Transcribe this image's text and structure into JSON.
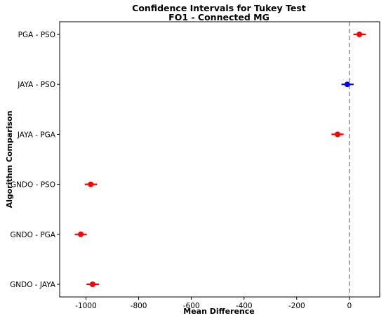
{
  "chart_data": {
    "type": "errorbar",
    "title": "Confidence Intervals for Tukey Test",
    "subtitle": "FO1 - Connected MG",
    "xlabel": "Mean Difference",
    "ylabel": "Algorithm Comparison",
    "xlim": [
      -1100,
      115
    ],
    "xticks": [
      -1000,
      -800,
      -600,
      -400,
      -200,
      0
    ],
    "xtick_labels": [
      "-1000",
      "-800",
      "-600",
      "-400",
      "-200",
      "0"
    ],
    "reference_line": 0,
    "grid": false,
    "comparisons": [
      {
        "label": "PGA - PSO",
        "mean": 38,
        "lower": 15,
        "upper": 62,
        "color": "#ff0000"
      },
      {
        "label": "JAYA - PSO",
        "mean": -8,
        "lower": -30,
        "upper": 16,
        "color": "#0000ff"
      },
      {
        "label": "JAYA - PGA",
        "mean": -45,
        "lower": -68,
        "upper": -22,
        "color": "#ff0000"
      },
      {
        "label": "GNDO - PSO",
        "mean": -982,
        "lower": -1005,
        "upper": -958,
        "color": "#ff0000"
      },
      {
        "label": "GNDO - PGA",
        "mean": -1020,
        "lower": -1043,
        "upper": -997,
        "color": "#ff0000"
      },
      {
        "label": "GNDO - JAYA",
        "mean": -975,
        "lower": -998,
        "upper": -951,
        "color": "#ff0000"
      }
    ]
  }
}
